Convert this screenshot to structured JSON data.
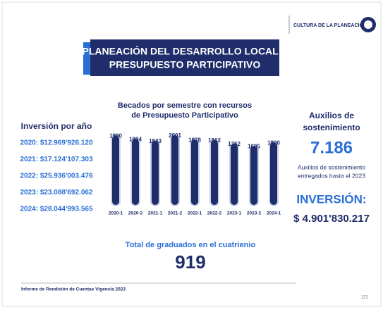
{
  "header": {
    "section": "CULTURA DE LA PLANEACIÓN"
  },
  "title": [
    "PLANEACIÓN DEL DESARROLLO LOCAL Y",
    "PRESUPUESTO PARTICIPATIVO"
  ],
  "investment": {
    "title": "Inversión por año",
    "items": [
      "2020: $12.969'926.120",
      "2021: $17.124'107.303",
      "2022: $25.936'003.476",
      "2023: $23.088'692.062",
      "2024: $28.044'993.565"
    ]
  },
  "chart_data": {
    "type": "bar",
    "title": [
      "Becados por semestre con recursos",
      "de Presupuesto Participativo"
    ],
    "categories": [
      "2020-1",
      "2020-2",
      "2021-1",
      "2021-2",
      "2022-1",
      "2022-2",
      "2023-1",
      "2023-2",
      "2024-1"
    ],
    "values": [
      1990,
      1894,
      1843,
      2001,
      1878,
      1862,
      1762,
      1695,
      1800
    ],
    "color": "#1f2d6b",
    "ylim": [
      0,
      2100
    ]
  },
  "support": {
    "title": [
      "Auxilios de",
      "sostenimiento"
    ],
    "count": "7.186",
    "note": [
      "Auxilios de sostenimiento",
      "entregados hasta el 2023"
    ],
    "investment_label": "INVERSIÓN:",
    "investment_value": "$ 4.901'830.217"
  },
  "graduates": {
    "label": "Total de graduados en el cuatrienio",
    "value": "919"
  },
  "footer": {
    "report": "Informe de Rendición de Cuentas Vigencia 2023",
    "page": "121"
  }
}
